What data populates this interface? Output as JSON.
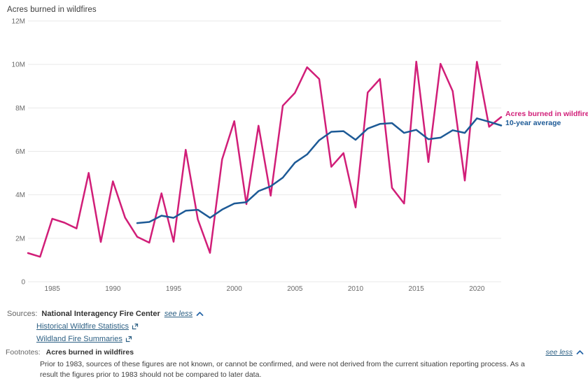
{
  "page": {
    "title": "Acres burned in wildfires"
  },
  "chart_data": {
    "type": "line",
    "title": "Acres burned in wildfires",
    "units": "acres burned, millions",
    "x": [
      1983,
      1984,
      1985,
      1986,
      1987,
      1988,
      1989,
      1990,
      1991,
      1992,
      1993,
      1994,
      1995,
      1996,
      1997,
      1998,
      1999,
      2000,
      2001,
      2002,
      2003,
      2004,
      2005,
      2006,
      2007,
      2008,
      2009,
      2010,
      2011,
      2012,
      2013,
      2014,
      2015,
      2016,
      2017,
      2018,
      2019,
      2020,
      2021,
      2022
    ],
    "series": [
      {
        "name": "Acres burned in wildfires",
        "color": "#d11e78",
        "x_start": 1983,
        "values": [
          1.32,
          1.15,
          2.9,
          2.72,
          2.45,
          5.01,
          1.83,
          4.62,
          2.95,
          2.07,
          1.8,
          4.07,
          1.84,
          6.07,
          2.86,
          1.33,
          5.63,
          7.39,
          3.57,
          7.18,
          3.96,
          8.1,
          8.69,
          9.87,
          9.33,
          5.29,
          5.92,
          3.42,
          8.71,
          9.33,
          4.32,
          3.6,
          10.13,
          5.51,
          10.03,
          8.77,
          4.66,
          10.12,
          7.13,
          7.58
        ]
      },
      {
        "name": "10-year average",
        "color": "#1d5a96",
        "x_start": 1992,
        "values": [
          2.7,
          2.75,
          3.04,
          2.94,
          3.27,
          3.31,
          2.94,
          3.32,
          3.6,
          3.66,
          4.17,
          4.39,
          4.79,
          5.48,
          5.86,
          6.51,
          6.9,
          6.93,
          6.53,
          7.05,
          7.26,
          7.3,
          6.85,
          6.99,
          6.56,
          6.63,
          6.97,
          6.85,
          7.52,
          7.36,
          7.19
        ]
      }
    ],
    "xlim": [
      1983,
      2022
    ],
    "ylim": [
      0,
      12
    ],
    "grid": true,
    "legend_position": "right of line ends",
    "y_ticks": [
      {
        "v": 0,
        "label": "0"
      },
      {
        "v": 2,
        "label": "2M"
      },
      {
        "v": 4,
        "label": "4M"
      },
      {
        "v": 6,
        "label": "6M"
      },
      {
        "v": 8,
        "label": "8M"
      },
      {
        "v": 10,
        "label": "10M"
      },
      {
        "v": 12,
        "label": "12M"
      }
    ],
    "x_ticks": [
      {
        "v": 1985,
        "label": "1985"
      },
      {
        "v": 1990,
        "label": "1990"
      },
      {
        "v": 1995,
        "label": "1995"
      },
      {
        "v": 2000,
        "label": "2000"
      },
      {
        "v": 2005,
        "label": "2005"
      },
      {
        "v": 2010,
        "label": "2010"
      },
      {
        "v": 2015,
        "label": "2015"
      },
      {
        "v": 2020,
        "label": "2020"
      }
    ]
  },
  "legend": {
    "acres_label": "Acres burned in wildfires",
    "average_label": "10-year average"
  },
  "sources": {
    "label": "Sources:",
    "name": "National Interagency Fire Center",
    "toggle": "see less",
    "links": [
      {
        "label": "Historical Wildfire Statistics"
      },
      {
        "label": "Wildland Fire Summaries"
      }
    ]
  },
  "footnotes": {
    "label": "Footnotes:",
    "title": "Acres burned in wildfires",
    "toggle": "see less",
    "text": "Prior to 1983, sources of these figures are not known, or cannot be confirmed, and were not derived from the current situation reporting process. As a result the figures prior to 1983 should not be compared to later data."
  },
  "colors": {
    "acres_line": "#d11e78",
    "average_line": "#1d5a96",
    "link": "#2d6084",
    "chevron": "#2766a8",
    "gridline": "#e9e9e9",
    "tick_text": "#6a6a6a"
  }
}
